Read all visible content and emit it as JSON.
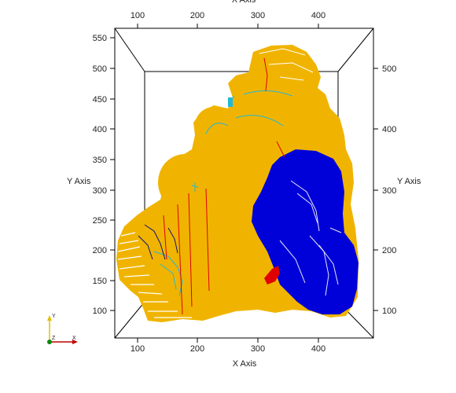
{
  "viewer": {
    "axes": {
      "x_label": "X Axis",
      "y_label": "Y Axis",
      "x_ticks": [
        100,
        200,
        300,
        400
      ],
      "y_ticks_left": [
        100,
        150,
        200,
        250,
        300,
        350,
        400,
        450,
        500,
        550
      ],
      "y_ticks_right": [
        100,
        200,
        300,
        400,
        500
      ]
    },
    "orientation_axes": {
      "x_letter": "X",
      "y_letter": "Y",
      "z_letter": "Z"
    },
    "colors": {
      "surface": "#f0b400",
      "basin": "#0000d8",
      "contour_red": "#e00000",
      "contour_cyan": "#20b8d8",
      "contour_navy": "#101070",
      "frame": "#000000"
    }
  }
}
